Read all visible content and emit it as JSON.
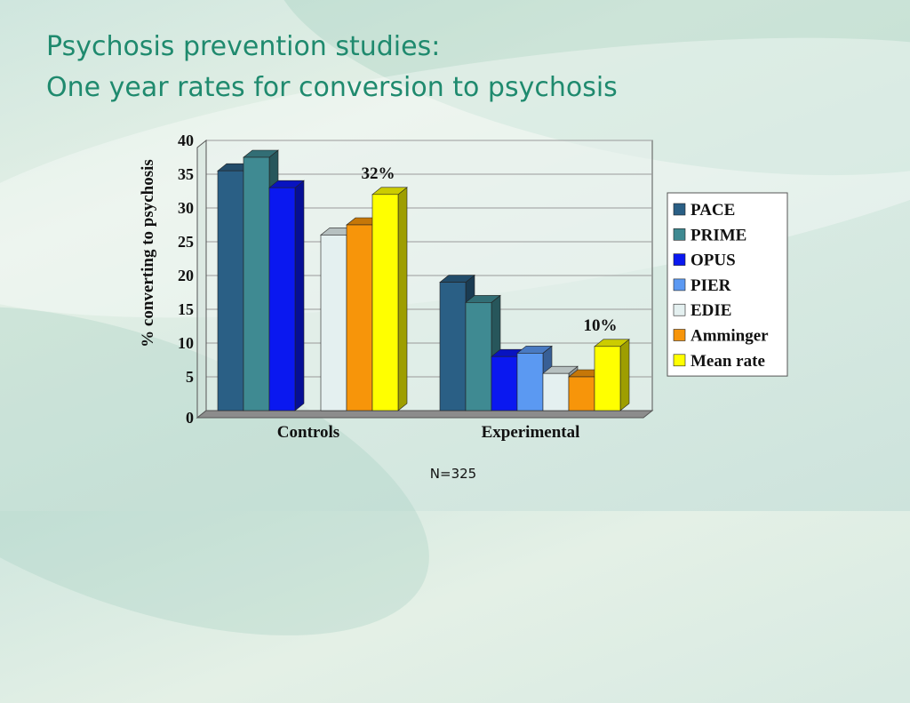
{
  "slide": {
    "title_line1": "Psychosis prevention studies:",
    "title_line2": "One year rates for conversion to psychosis",
    "note": "N=325"
  },
  "chart_data": {
    "type": "bar",
    "title": "",
    "xlabel": "",
    "ylabel": "% converting to psychosis",
    "ylim": [
      0,
      40
    ],
    "yticks": [
      0,
      5,
      10,
      15,
      20,
      25,
      30,
      35,
      40
    ],
    "categories": [
      "Controls",
      "Experimental"
    ],
    "legend_position": "right",
    "series": [
      {
        "name": "PACE",
        "values": [
          35.5,
          19
        ],
        "color": "#2a5f85"
      },
      {
        "name": "PRIME",
        "values": [
          37.5,
          16
        ],
        "color": "#3f8a92"
      },
      {
        "name": "OPUS",
        "values": [
          33,
          8
        ],
        "color": "#0a18f0"
      },
      {
        "name": "PIER",
        "values": [
          null,
          8.5
        ],
        "color": "#5b99f2"
      },
      {
        "name": "EDIE",
        "values": [
          26,
          5.5
        ],
        "color": "#e4f0f0"
      },
      {
        "name": "Amminger",
        "values": [
          27.5,
          5
        ],
        "color": "#f7950a"
      },
      {
        "name": "Mean rate",
        "values": [
          32,
          9.5
        ],
        "color": "#ffff00"
      }
    ],
    "annotations": [
      {
        "text": "32%",
        "series": "Mean rate",
        "category": "Controls"
      },
      {
        "text": "10%",
        "series": "Mean rate",
        "category": "Experimental"
      }
    ]
  }
}
